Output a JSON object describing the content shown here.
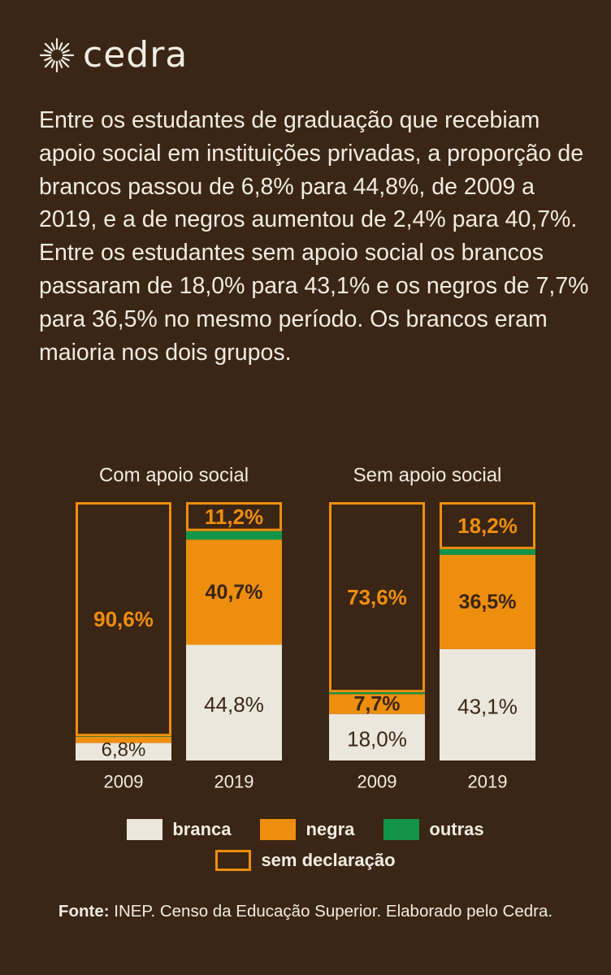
{
  "brand": {
    "name": "cedra",
    "logo_icon": "sunburst-icon"
  },
  "intro_text": "Entre os estudantes de graduação que recebiam apoio social em instituições privadas, a proporção de brancos passou de 6,8% para 44,8%, de 2009 a 2019, e a de negros aumentou de 2,4% para 40,7%. Entre os estudantes sem apoio social os brancos passaram de 18,0% para 43,1% e os negros de 7,7% para 36,5% no mesmo período. Os brancos eram maioria nos dois grupos.",
  "colors": {
    "background": "#3b2514",
    "branca": "#ebe7dd",
    "negra": "#ee8e0e",
    "outras": "#129449",
    "sem_declaracao": "#ee8e0e",
    "text": "#f0ece2"
  },
  "chart_data": {
    "type": "bar",
    "stacked": true,
    "groups": [
      {
        "title": "Com apoio social",
        "bars": [
          {
            "year": "2009",
            "branca": 6.8,
            "negra": 2.4,
            "outras": 0.2,
            "sem_declaracao": 90.6,
            "labels": {
              "branca": "6,8%",
              "sem_declaracao": "90,6%"
            }
          },
          {
            "year": "2019",
            "branca": 44.8,
            "negra": 40.7,
            "outras": 3.3,
            "sem_declaracao": 11.2,
            "labels": {
              "branca": "44,8%",
              "negra": "40,7%",
              "sem_declaracao": "11,2%"
            }
          }
        ]
      },
      {
        "title": "Sem apoio social",
        "bars": [
          {
            "year": "2009",
            "branca": 18.0,
            "negra": 7.7,
            "outras": 0.7,
            "sem_declaracao": 73.6,
            "labels": {
              "branca": "18,0%",
              "negra": "7,7%",
              "sem_declaracao": "73,6%"
            }
          },
          {
            "year": "2019",
            "branca": 43.1,
            "negra": 36.5,
            "outras": 2.2,
            "sem_declaracao": 18.2,
            "labels": {
              "branca": "43,1%",
              "negra": "36,5%",
              "sem_declaracao": "18,2%"
            }
          }
        ]
      }
    ]
  },
  "legend": {
    "branca": "branca",
    "negra": "negra",
    "outras": "outras",
    "sem_declaracao": "sem declaração"
  },
  "source": {
    "label": "Fonte:",
    "text": "INEP. Censo da Educação Superior. Elaborado pelo Cedra."
  }
}
